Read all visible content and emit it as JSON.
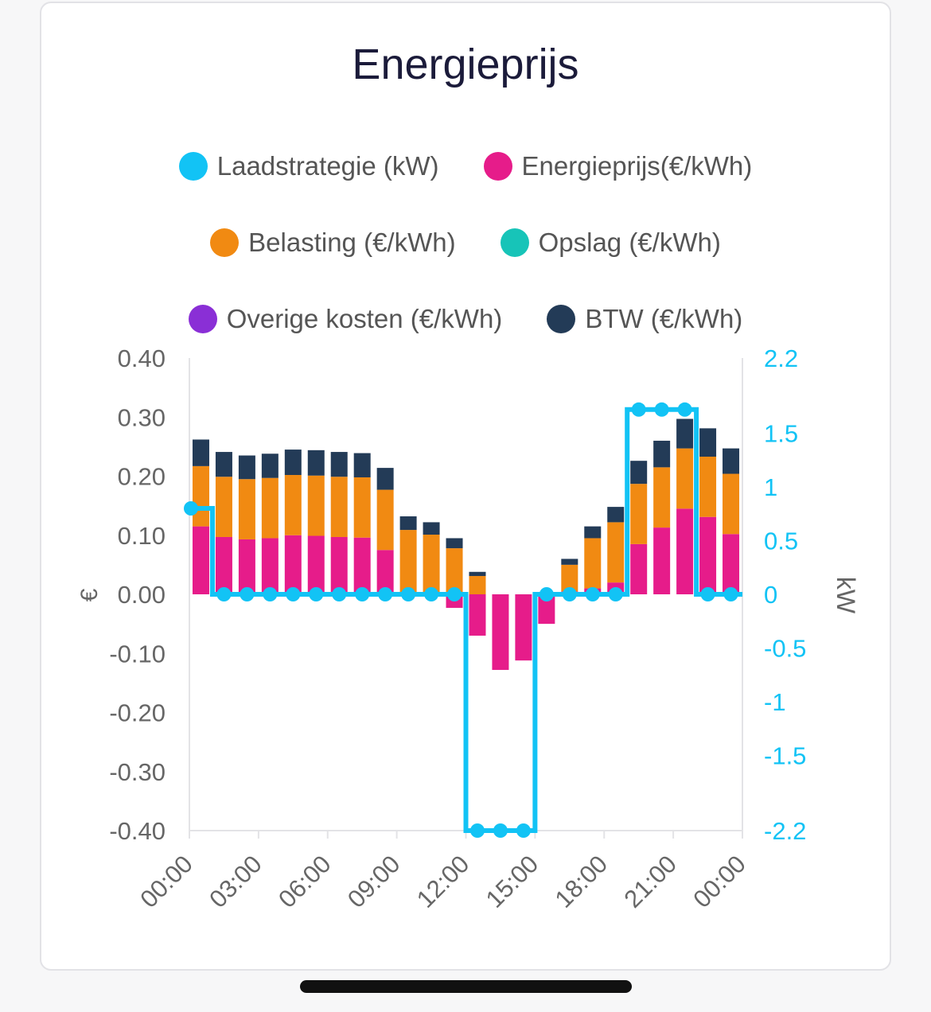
{
  "title": "Energieprijs",
  "legend": [
    {
      "label": "Laadstrategie (kW)",
      "color": "#12c3f5"
    },
    {
      "label": "Energieprijs(€/kWh)",
      "color": "#e61c8a"
    },
    {
      "label": "Belasting (€/kWh)",
      "color": "#f18a12"
    },
    {
      "label": "Opslag (€/kWh)",
      "color": "#17c4b8"
    },
    {
      "label": "Overige kosten (€/kWh)",
      "color": "#8a2fd6"
    },
    {
      "label": "BTW (€/kWh)",
      "color": "#233b57"
    }
  ],
  "chart_data": {
    "type": "bar",
    "stacked": true,
    "x": [
      "00:00",
      "01:00",
      "02:00",
      "03:00",
      "04:00",
      "05:00",
      "06:00",
      "07:00",
      "08:00",
      "09:00",
      "10:00",
      "11:00",
      "12:00",
      "13:00",
      "14:00",
      "15:00",
      "16:00",
      "17:00",
      "18:00",
      "19:00",
      "20:00",
      "21:00",
      "22:00",
      "23:00"
    ],
    "xticks": [
      "00:00",
      "03:00",
      "06:00",
      "09:00",
      "12:00",
      "15:00",
      "18:00",
      "21:00",
      "00:00"
    ],
    "ylabel": "€",
    "ylim": [
      -0.4,
      0.4
    ],
    "yticks": [
      "0.40",
      "0.30",
      "0.20",
      "0.10",
      "0.00",
      "-0.10",
      "-0.20",
      "-0.30",
      "-0.40"
    ],
    "y2label": "kW",
    "y2lim": [
      -2.2,
      2.2
    ],
    "y2ticks": [
      "2.2",
      "1.5",
      "1",
      "0.5",
      "0",
      "-0.5",
      "-1",
      "-1.5",
      "-2.2"
    ],
    "series": [
      {
        "name": "Energieprijs(€/kWh)",
        "color": "#e61c8a",
        "values": [
          0.115,
          0.097,
          0.093,
          0.095,
          0.1,
          0.099,
          0.097,
          0.096,
          0.075,
          0.002,
          0.003,
          -0.023,
          -0.07,
          -0.128,
          -0.112,
          -0.05,
          0.005,
          0.01,
          0.02,
          0.085,
          0.113,
          0.145,
          0.131,
          0.102
        ]
      },
      {
        "name": "Belasting (€/kWh)",
        "color": "#f18a12",
        "values": [
          0.102,
          0.102,
          0.102,
          0.102,
          0.102,
          0.102,
          0.102,
          0.102,
          0.102,
          0.107,
          0.098,
          0.078,
          0.031,
          0.0,
          0.0,
          0.0,
          0.045,
          0.085,
          0.102,
          0.102,
          0.102,
          0.102,
          0.102,
          0.102
        ]
      },
      {
        "name": "BTW (€/kWh)",
        "color": "#233b57",
        "values": [
          0.045,
          0.042,
          0.04,
          0.041,
          0.043,
          0.043,
          0.042,
          0.041,
          0.037,
          0.023,
          0.021,
          0.017,
          0.007,
          0.0,
          0.0,
          0.0,
          0.01,
          0.02,
          0.026,
          0.039,
          0.045,
          0.05,
          0.048,
          0.043
        ]
      },
      {
        "name": "Laadstrategie (kW)",
        "color": "#12c3f5",
        "axis": "right",
        "style": "step-line",
        "values": [
          0.8,
          0,
          0,
          0,
          0,
          0,
          0,
          0,
          0,
          0,
          0,
          0,
          -2.2,
          -2.2,
          -2.2,
          0,
          0,
          0,
          0,
          1.72,
          1.72,
          1.72,
          0,
          0
        ]
      }
    ]
  }
}
